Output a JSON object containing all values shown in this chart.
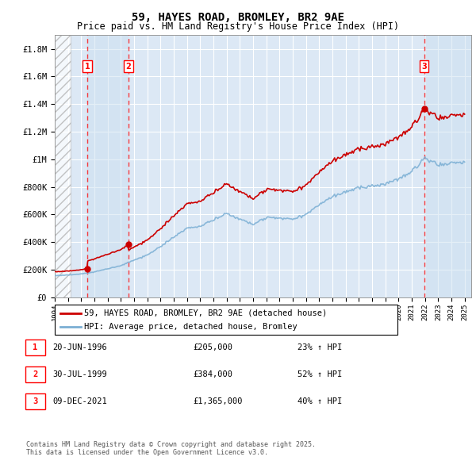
{
  "title": "59, HAYES ROAD, BROMLEY, BR2 9AE",
  "subtitle": "Price paid vs. HM Land Registry's House Price Index (HPI)",
  "footer": "Contains HM Land Registry data © Crown copyright and database right 2025.\nThis data is licensed under the Open Government Licence v3.0.",
  "legend_line1": "59, HAYES ROAD, BROMLEY, BR2 9AE (detached house)",
  "legend_line2": "HPI: Average price, detached house, Bromley",
  "transactions": [
    {
      "num": 1,
      "date": "20-JUN-1996",
      "price": "£205,000",
      "hpi": "23% ↑ HPI",
      "year": 1996.46
    },
    {
      "num": 2,
      "date": "30-JUL-1999",
      "price": "£384,000",
      "hpi": "52% ↑ HPI",
      "year": 1999.58
    },
    {
      "num": 3,
      "date": "09-DEC-2021",
      "price": "£1,365,000",
      "hpi": "40% ↑ HPI",
      "year": 2021.94
    }
  ],
  "transaction_prices": [
    205000,
    384000,
    1365000
  ],
  "ylim": [
    0,
    1900000
  ],
  "xlim_start": 1994.0,
  "xlim_end": 2025.5,
  "background_color": "#ffffff",
  "plot_bg_color": "#dce8f5",
  "red_line_color": "#cc0000",
  "blue_line_color": "#7bafd4",
  "grid_color": "#ffffff",
  "hatch_end": 1995.2
}
